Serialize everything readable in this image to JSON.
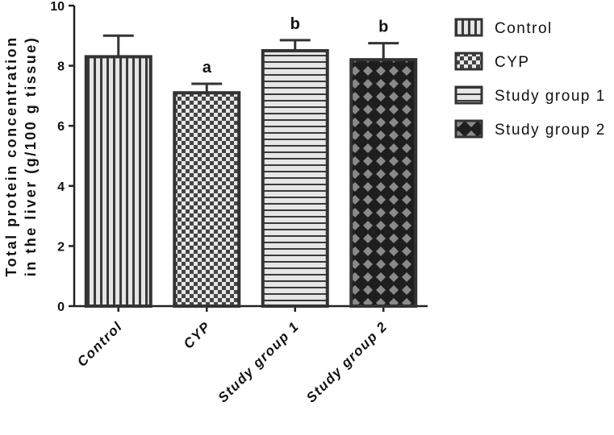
{
  "chart_data": {
    "type": "bar",
    "categories": [
      "Control",
      "CYP",
      "Study group 1",
      "Study group 2"
    ],
    "series": [
      {
        "values": [
          8.3,
          7.1,
          8.5,
          8.2
        ],
        "errors": [
          0.7,
          0.3,
          0.35,
          0.55
        ]
      }
    ],
    "annotations": [
      "",
      "a",
      "b",
      "b"
    ],
    "title": "",
    "xlabel": "",
    "ylabel_lines": [
      "Total protein concentration",
      "in the liver (g/100 g tissue)"
    ],
    "ylim": [
      0,
      10
    ],
    "yticks": [
      "0",
      "2",
      "4",
      "6",
      "8",
      "10"
    ],
    "grid": false,
    "legend": {
      "position": "right",
      "entries": [
        "Control",
        "CYP",
        "Study group 1",
        "Study group 2"
      ]
    },
    "patterns": [
      "vertical-stripes",
      "checkerboard",
      "horizontal-stripes",
      "diamond-crosshatch"
    ],
    "colors": {
      "bar_edge": "#333333",
      "axis": "#222222",
      "light_fill": "#d9d9d9",
      "dark_fill": "#1a1a1a"
    }
  }
}
